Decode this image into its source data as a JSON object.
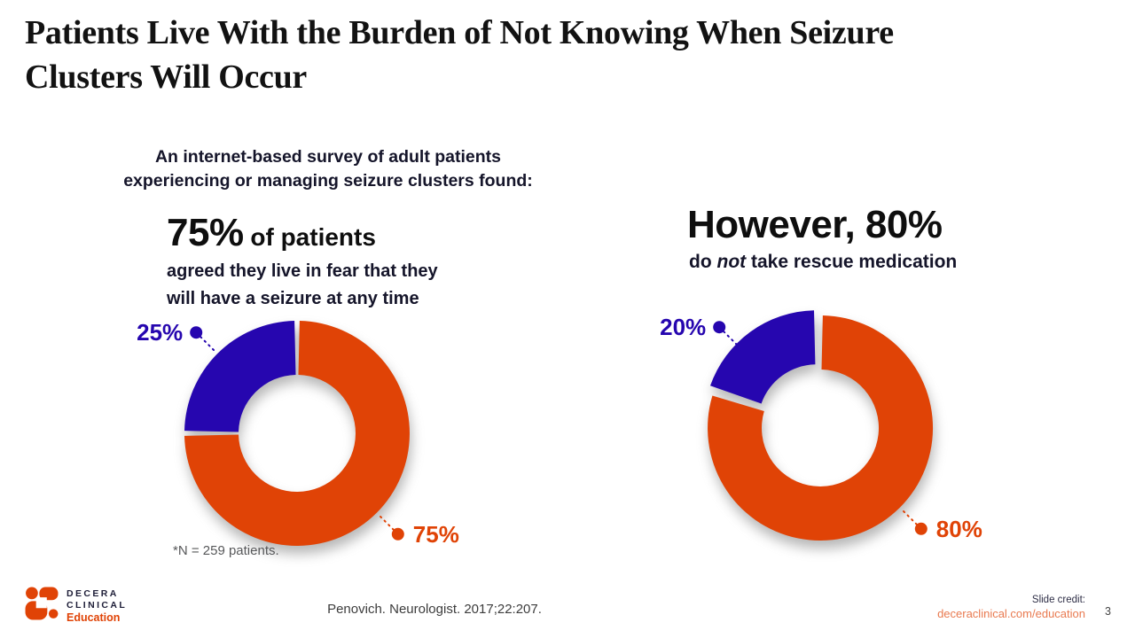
{
  "slide": {
    "title_line1": "Patients Live With the Burden of Not Knowing When Seizure",
    "title_line2": "Clusters Will Occur"
  },
  "survey_intro": {
    "line1": "An internet-based survey of adult patients",
    "line2": "experiencing or managing seizure clusters found:"
  },
  "left_stat": {
    "headline_value": "75%",
    "headline_suffix": " of patients",
    "description_line1": "agreed they live in fear that they",
    "description_line2": "will have a seizure at any time",
    "footnote": "*N =  259 patients."
  },
  "right_stat": {
    "headline": "However, 80%",
    "sub_prefix": "do ",
    "sub_italic": "not",
    "sub_suffix": " take rescue medication"
  },
  "footer": {
    "logo_line1": "DECERA",
    "logo_line2": "CLINICAL",
    "logo_line3": "Education",
    "citation": "Penovich. Neurologist. 2017;22:207.",
    "credit_label": "Slide credit:",
    "credit_link": "deceraclinical.com/education",
    "page_number": "3"
  },
  "colors": {
    "orange": "#E04306",
    "indigo": "#2606AF",
    "link_orange": "#E97A50",
    "title_text": "#121212",
    "body_text": "#15152A",
    "muted_gray": "#57585A"
  },
  "chart_data": [
    {
      "type": "pie",
      "subtype": "donut",
      "context": "75% of patients agreed they live in fear that they will have a seizure at any time",
      "labels": [
        "75%",
        "25%"
      ],
      "values": [
        75,
        25
      ],
      "colors": [
        "#E04306",
        "#2606AF"
      ],
      "explode": [
        0,
        0
      ],
      "legend_position": "callout",
      "sample_note": "*N = 259 patients."
    },
    {
      "type": "pie",
      "subtype": "donut",
      "context": "However, 80% do not take rescue medication",
      "labels": [
        "80%",
        "20%"
      ],
      "values": [
        80,
        20
      ],
      "colors": [
        "#E04306",
        "#2606AF"
      ],
      "explode": [
        0,
        7
      ],
      "legend_position": "callout"
    }
  ]
}
